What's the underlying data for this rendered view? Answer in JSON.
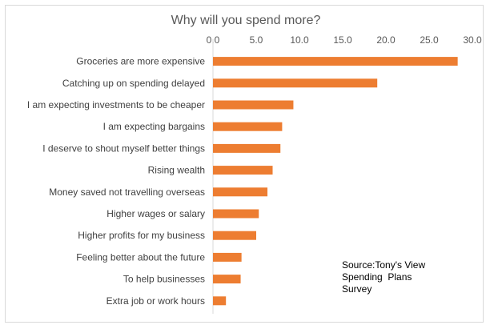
{
  "chart_data": {
    "type": "bar",
    "orientation": "horizontal",
    "title": "Why will you spend more?",
    "xlabel": "",
    "ylabel": "",
    "xlim": [
      0,
      30
    ],
    "x_ticks": [
      0,
      5,
      10,
      15,
      20,
      25,
      30
    ],
    "x_tick_labels": [
      "0.0",
      "5.0",
      "10.0",
      "15.0",
      "20.0",
      "25.0",
      "30.0"
    ],
    "axis_position": "top",
    "grid": false,
    "bar_color": "#ed7d31",
    "categories": [
      "Groceries are more expensive",
      "Catching up on spending delayed",
      "I am expecting investments to be cheaper",
      "I am expecting bargains",
      "I deserve to shout myself better things",
      "Rising wealth",
      "Money saved not travelling overseas",
      "Higher wages or salary",
      "Higher profits for my business",
      "Feeling better about the future",
      "To help businesses",
      "Extra job or work hours"
    ],
    "values": [
      28.3,
      19.0,
      9.3,
      8.0,
      7.8,
      6.9,
      6.3,
      5.3,
      5.0,
      3.3,
      3.2,
      1.5
    ],
    "annotation": {
      "lines": [
        "Source:Tony's View",
        "Spending  Plans",
        "Survey"
      ]
    }
  }
}
